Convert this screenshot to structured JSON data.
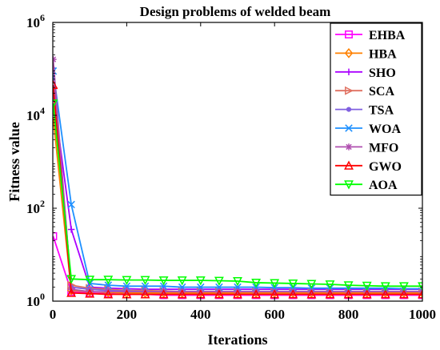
{
  "chart_data": {
    "type": "line",
    "title": "Design problems of welded beam",
    "xlabel": "Iterations",
    "ylabel": "Fitness value",
    "xlim": [
      0,
      1000
    ],
    "ylim": [
      1,
      1000000
    ],
    "yscale": "log",
    "grid": false,
    "legend_position": "top-right",
    "x_ticks": [
      0,
      200,
      400,
      600,
      800,
      1000
    ],
    "y_ticks": [
      {
        "value": 1,
        "base": "10",
        "exp": "0"
      },
      {
        "value": 100,
        "base": "10",
        "exp": "2"
      },
      {
        "value": 10000,
        "base": "10",
        "exp": "4"
      },
      {
        "value": 1000000,
        "base": "10",
        "exp": "6"
      }
    ],
    "x": [
      1,
      50,
      100,
      150,
      200,
      250,
      300,
      350,
      400,
      450,
      500,
      550,
      600,
      650,
      700,
      750,
      800,
      850,
      900,
      950,
      1000
    ],
    "series": [
      {
        "name": "EHBA",
        "color": "#ff00ff",
        "marker": "square",
        "values": [
          25,
          1.6,
          1.5,
          1.45,
          1.4,
          1.4,
          1.35,
          1.35,
          1.35,
          1.35,
          1.35,
          1.35,
          1.35,
          1.35,
          1.35,
          1.35,
          1.35,
          1.35,
          1.35,
          1.35,
          1.35
        ]
      },
      {
        "name": "HBA",
        "color": "#ff8000",
        "marker": "diamond",
        "values": [
          9000,
          1.7,
          1.6,
          1.55,
          1.5,
          1.5,
          1.5,
          1.5,
          1.5,
          1.5,
          1.5,
          1.5,
          1.5,
          1.5,
          1.5,
          1.5,
          1.5,
          1.5,
          1.5,
          1.5,
          1.5
        ]
      },
      {
        "name": "SHO",
        "color": "#aa00ff",
        "marker": "plus",
        "values": [
          30000,
          35,
          2.0,
          1.9,
          1.85,
          1.8,
          1.8,
          1.8,
          1.8,
          1.8,
          1.8,
          1.8,
          1.8,
          1.8,
          1.8,
          1.8,
          1.8,
          1.8,
          1.8,
          1.8,
          1.8
        ]
      },
      {
        "name": "SCA",
        "color": "#e07060",
        "marker": "triangle-right",
        "values": [
          40000,
          2.2,
          1.9,
          1.8,
          1.7,
          1.7,
          1.65,
          1.6,
          1.6,
          1.6,
          1.6,
          1.6,
          1.6,
          1.6,
          1.6,
          1.6,
          1.6,
          1.6,
          1.6,
          1.6,
          1.6
        ]
      },
      {
        "name": "TSA",
        "color": "#8060e0",
        "marker": "circle",
        "values": [
          100000,
          2.0,
          1.8,
          1.7,
          1.65,
          1.6,
          1.6,
          1.6,
          1.6,
          1.6,
          1.6,
          1.6,
          1.6,
          1.6,
          1.6,
          1.6,
          1.6,
          1.6,
          1.6,
          1.6,
          1.6
        ]
      },
      {
        "name": "WOA",
        "color": "#1e90ff",
        "marker": "x",
        "values": [
          90000,
          120,
          2.4,
          2.2,
          2.1,
          2.1,
          2.1,
          2.0,
          2.0,
          2.0,
          2.0,
          2.0,
          1.95,
          1.95,
          1.9,
          1.9,
          1.9,
          1.9,
          1.9,
          1.85,
          1.85
        ]
      },
      {
        "name": "MFO",
        "color": "#b050b0",
        "marker": "star",
        "values": [
          160000,
          1.8,
          1.6,
          1.6,
          1.6,
          1.6,
          1.6,
          1.6,
          1.6,
          1.6,
          1.6,
          1.6,
          1.6,
          1.6,
          1.6,
          1.6,
          1.6,
          1.6,
          1.6,
          1.6,
          1.6
        ]
      },
      {
        "name": "GWO",
        "color": "#ff0000",
        "marker": "triangle-up",
        "values": [
          45000,
          1.5,
          1.45,
          1.4,
          1.4,
          1.4,
          1.4,
          1.4,
          1.4,
          1.4,
          1.4,
          1.4,
          1.4,
          1.4,
          1.4,
          1.4,
          1.4,
          1.4,
          1.4,
          1.4,
          1.4
        ]
      },
      {
        "name": "AOA",
        "color": "#00ff00",
        "marker": "triangle-down",
        "values": [
          18000,
          3.0,
          2.9,
          2.9,
          2.85,
          2.85,
          2.8,
          2.8,
          2.8,
          2.75,
          2.7,
          2.5,
          2.45,
          2.4,
          2.35,
          2.3,
          2.2,
          2.15,
          2.1,
          2.1,
          2.1
        ]
      }
    ]
  }
}
